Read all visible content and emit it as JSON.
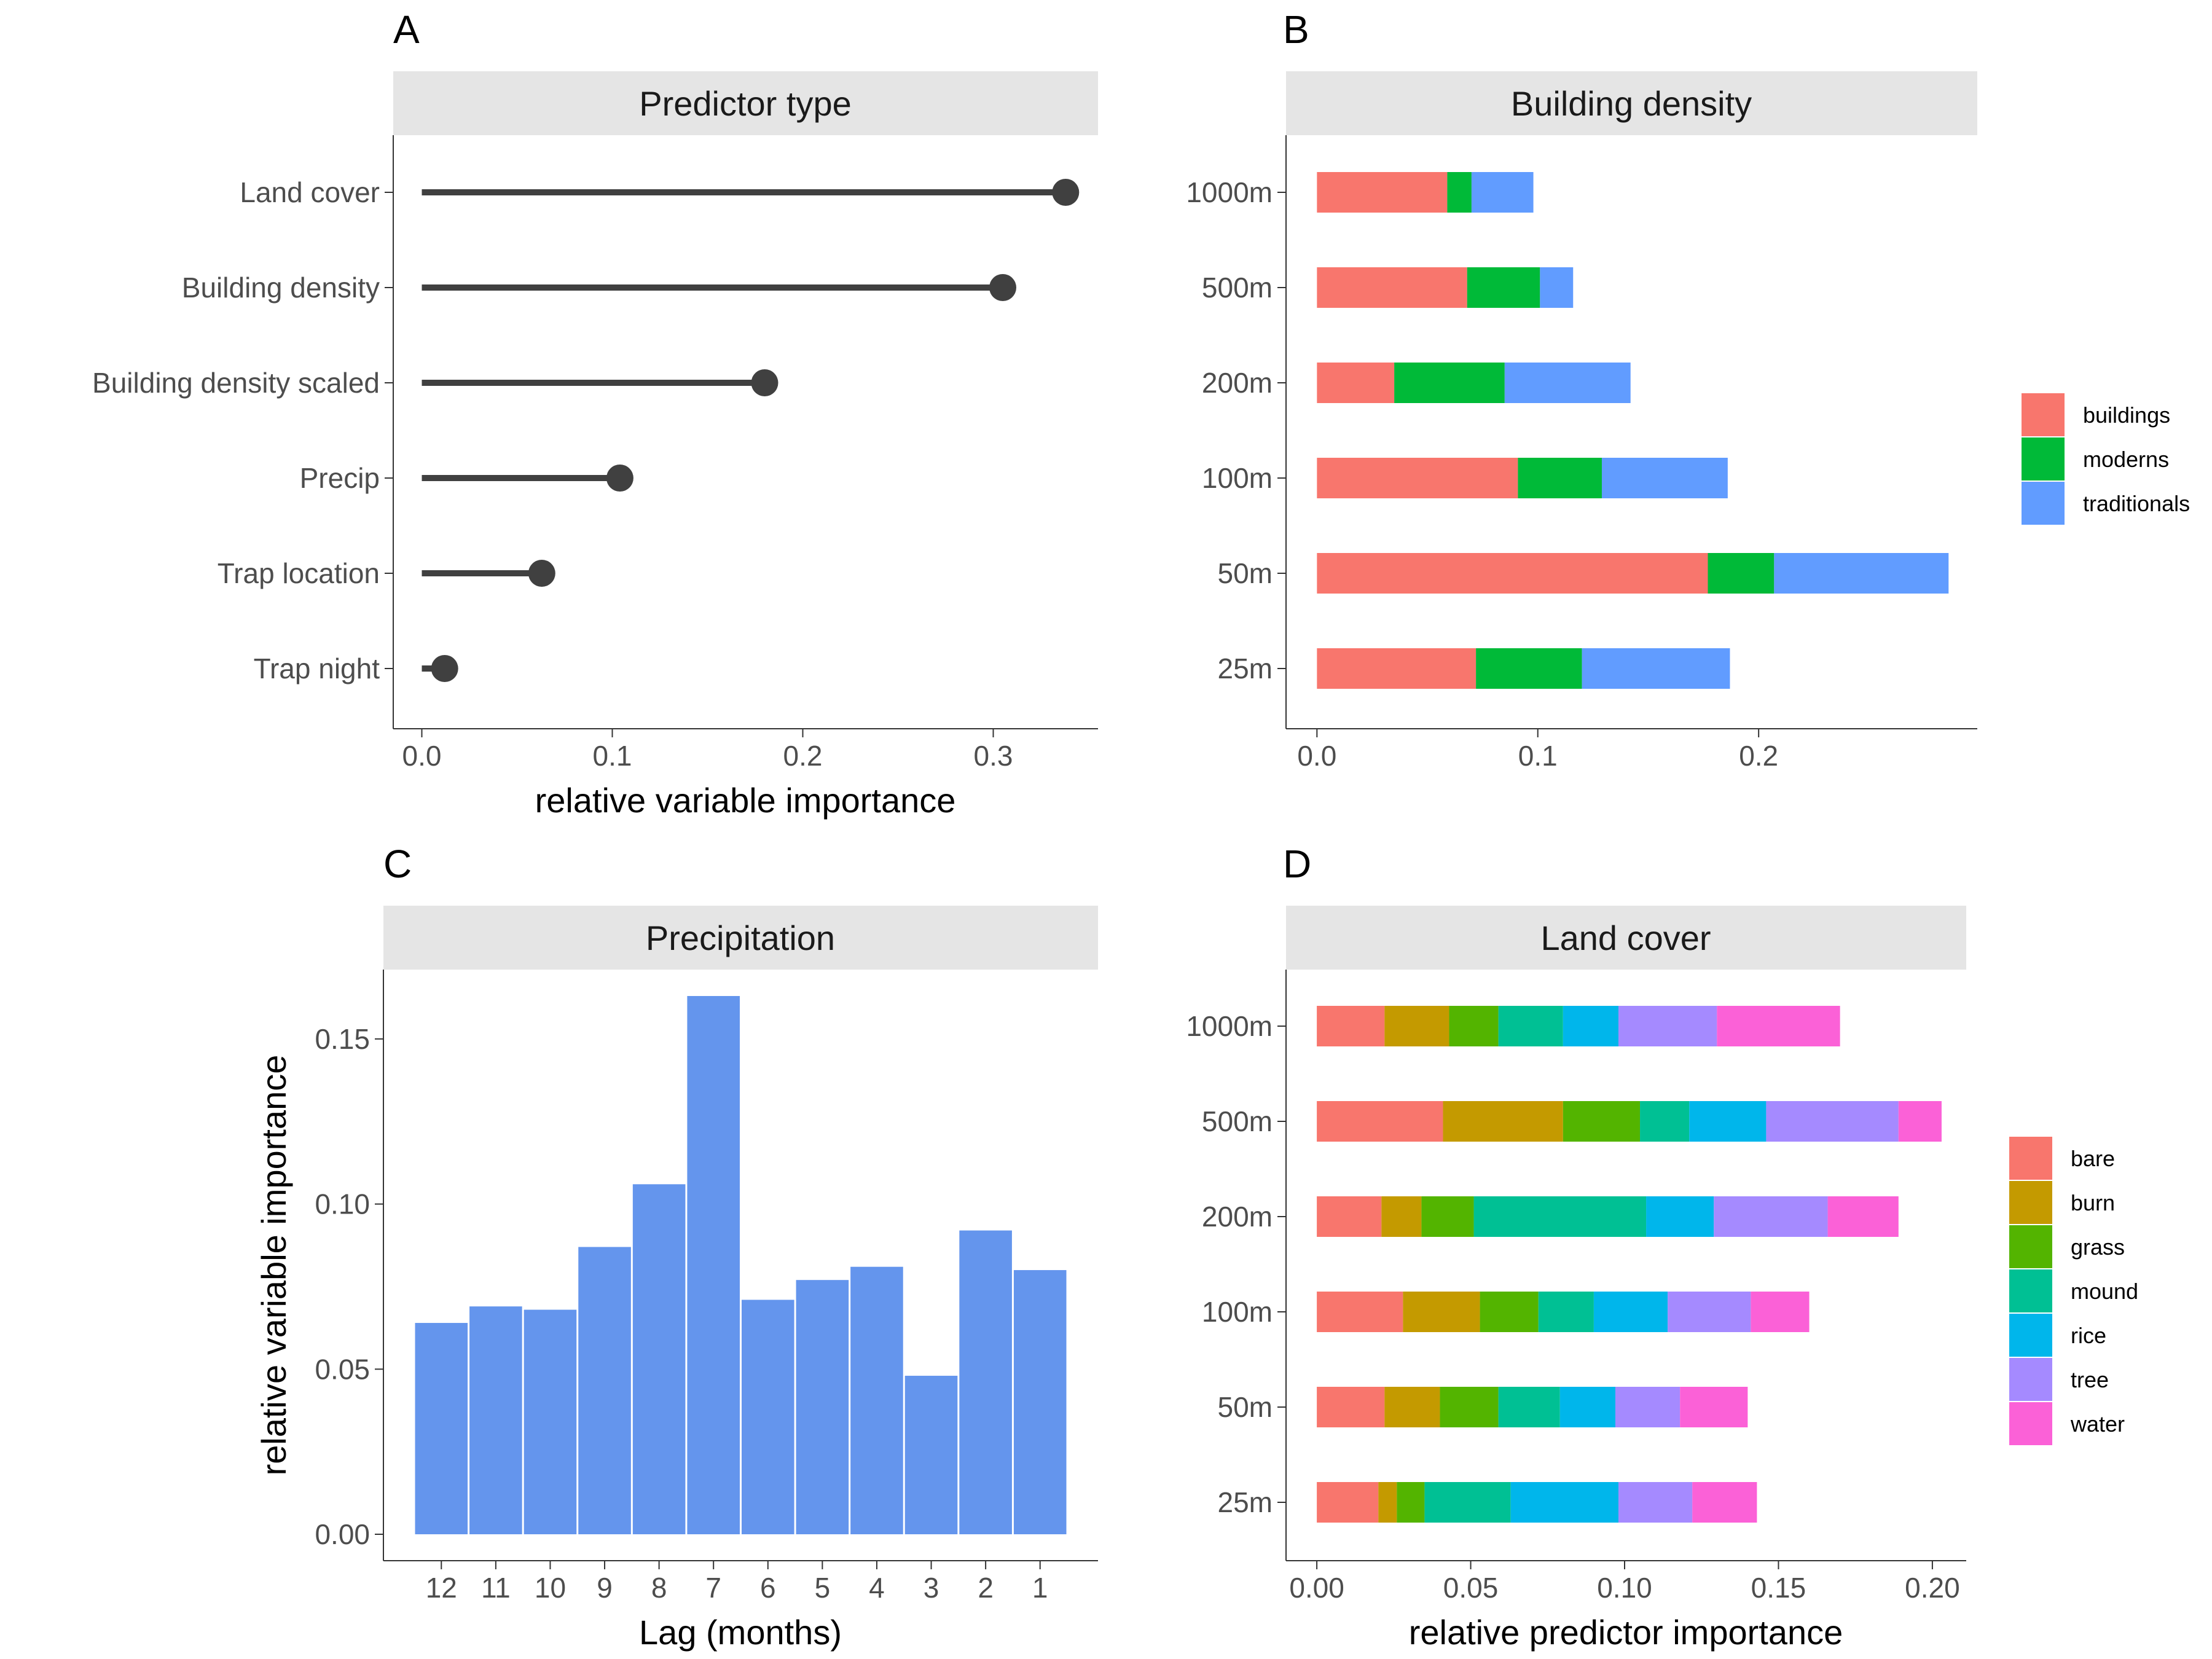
{
  "chart_data": [
    {
      "panel": "A",
      "type": "lollipop",
      "title": "Predictor type",
      "xlabel": "relative variable importance",
      "ylabel": "",
      "categories": [
        "Land cover",
        "Building density",
        "Building density scaled",
        "Precip",
        "Trap location",
        "Trap night"
      ],
      "values": [
        0.338,
        0.305,
        0.18,
        0.104,
        0.063,
        0.012
      ],
      "xlim": [
        -0.015,
        0.355
      ],
      "xticks": [
        "0.0",
        "0.1",
        "0.2",
        "0.3"
      ],
      "xtick_values": [
        0,
        0.1,
        0.2,
        0.3
      ],
      "color": "#404040"
    },
    {
      "panel": "B",
      "type": "bar",
      "orientation": "horizontal",
      "stacked": true,
      "title": "Building density",
      "xlabel": "",
      "ylabel": "",
      "categories": [
        "1000m",
        "500m",
        "200m",
        "100m",
        "50m",
        "25m"
      ],
      "series": [
        {
          "name": "buildings",
          "color": "#F8766D",
          "values": [
            0.059,
            0.068,
            0.035,
            0.091,
            0.177,
            0.072
          ]
        },
        {
          "name": "moderns",
          "color": "#00BA38",
          "values": [
            0.011,
            0.033,
            0.05,
            0.038,
            0.03,
            0.048
          ]
        },
        {
          "name": "traditionals",
          "color": "#619CFF",
          "values": [
            0.028,
            0.015,
            0.057,
            0.057,
            0.079,
            0.067
          ]
        }
      ],
      "xlim": [
        -0.014,
        0.299
      ],
      "xticks": [
        "0.0",
        "0.1",
        "0.2"
      ],
      "xtick_values": [
        0,
        0.1,
        0.2
      ],
      "legend_position": "right"
    },
    {
      "panel": "C",
      "type": "bar",
      "title": "Precipitation",
      "xlabel": "Lag (months)",
      "ylabel": "relative variable importance",
      "categories": [
        "12",
        "11",
        "10",
        "9",
        "8",
        "7",
        "6",
        "5",
        "4",
        "3",
        "2",
        "1"
      ],
      "values": [
        0.064,
        0.069,
        0.068,
        0.087,
        0.106,
        0.163,
        0.071,
        0.077,
        0.081,
        0.048,
        0.092,
        0.08
      ],
      "ylim": [
        -0.008,
        0.171
      ],
      "yticks": [
        "0.00",
        "0.05",
        "0.10",
        "0.15"
      ],
      "ytick_values": [
        0,
        0.05,
        0.1,
        0.15
      ],
      "color": "#6495ED"
    },
    {
      "panel": "D",
      "type": "bar",
      "orientation": "horizontal",
      "stacked": true,
      "title": "Land cover",
      "xlabel": "relative predictor importance",
      "ylabel": "",
      "categories": [
        "1000m",
        "500m",
        "200m",
        "100m",
        "50m",
        "25m"
      ],
      "series": [
        {
          "name": "bare",
          "color": "#F8766D",
          "values": [
            0.022,
            0.041,
            0.021,
            0.028,
            0.022,
            0.02
          ]
        },
        {
          "name": "burn",
          "color": "#C49A00",
          "values": [
            0.021,
            0.039,
            0.013,
            0.025,
            0.018,
            0.006
          ]
        },
        {
          "name": "grass",
          "color": "#53B400",
          "values": [
            0.016,
            0.025,
            0.017,
            0.019,
            0.019,
            0.009
          ]
        },
        {
          "name": "mound",
          "color": "#00C094",
          "values": [
            0.021,
            0.016,
            0.056,
            0.018,
            0.02,
            0.028
          ]
        },
        {
          "name": "rice",
          "color": "#00B6EB",
          "values": [
            0.018,
            0.025,
            0.022,
            0.024,
            0.018,
            0.035
          ]
        },
        {
          "name": "tree",
          "color": "#A58AFF",
          "values": [
            0.032,
            0.043,
            0.037,
            0.027,
            0.021,
            0.024
          ]
        },
        {
          "name": "water",
          "color": "#FB61D7",
          "values": [
            0.04,
            0.014,
            0.023,
            0.019,
            0.022,
            0.021
          ]
        }
      ],
      "xlim": [
        -0.01,
        0.211
      ],
      "xticks": [
        "0.00",
        "0.05",
        "0.10",
        "0.15",
        "0.20"
      ],
      "xtick_values": [
        0,
        0.05,
        0.1,
        0.15,
        0.2
      ],
      "legend_position": "right"
    }
  ]
}
